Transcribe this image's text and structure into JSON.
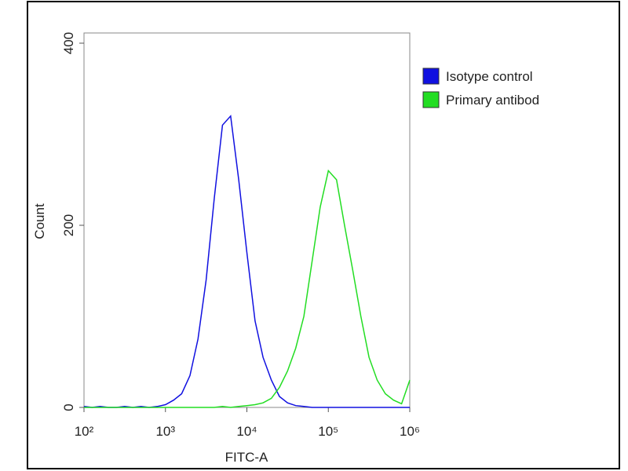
{
  "chart_data": {
    "type": "line",
    "x_label": "FITC-A",
    "y_label": "Count",
    "x": [
      100,
      126,
      158,
      200,
      251,
      316,
      398,
      501,
      631,
      794,
      1000,
      1260,
      1580,
      2000,
      2510,
      3160,
      3980,
      5010,
      6310,
      7940,
      10000,
      12600,
      15800,
      20000,
      25100,
      31600,
      39800,
      50100,
      63100,
      79400,
      100000,
      126000,
      158000,
      200000,
      251000,
      316000,
      398000,
      501000,
      631000,
      794000,
      1000000
    ],
    "series": [
      {
        "name": "Isotype control",
        "color": "#1010e0",
        "values": [
          1,
          0,
          1,
          0,
          0,
          1,
          0,
          1,
          0,
          1,
          3,
          8,
          15,
          35,
          75,
          140,
          230,
          310,
          320,
          250,
          170,
          95,
          55,
          30,
          12,
          5,
          2,
          1,
          0,
          0,
          0,
          0,
          0,
          0,
          0,
          0,
          0,
          0,
          0,
          0,
          0
        ]
      },
      {
        "name": "Primary antibod",
        "color": "#22dd22",
        "values": [
          0,
          0,
          0,
          0,
          0,
          0,
          0,
          0,
          0,
          0,
          0,
          0,
          0,
          0,
          0,
          0,
          0,
          1,
          0,
          1,
          2,
          3,
          5,
          10,
          22,
          40,
          65,
          100,
          160,
          220,
          260,
          250,
          200,
          150,
          100,
          55,
          30,
          15,
          8,
          4,
          30
        ]
      }
    ],
    "x_log": true,
    "xlim": [
      100,
      1000000
    ],
    "xticks": [
      {
        "value": 100,
        "label": "10²"
      },
      {
        "value": 1000,
        "label": "10³"
      },
      {
        "value": 10000,
        "label": "10⁴"
      },
      {
        "value": 100000,
        "label": "10⁵"
      },
      {
        "value": 1000000,
        "label": "10⁶"
      }
    ],
    "ylim": [
      0,
      400
    ],
    "yticks": [
      0,
      200,
      400
    ],
    "legend": "outside-upper-right"
  }
}
